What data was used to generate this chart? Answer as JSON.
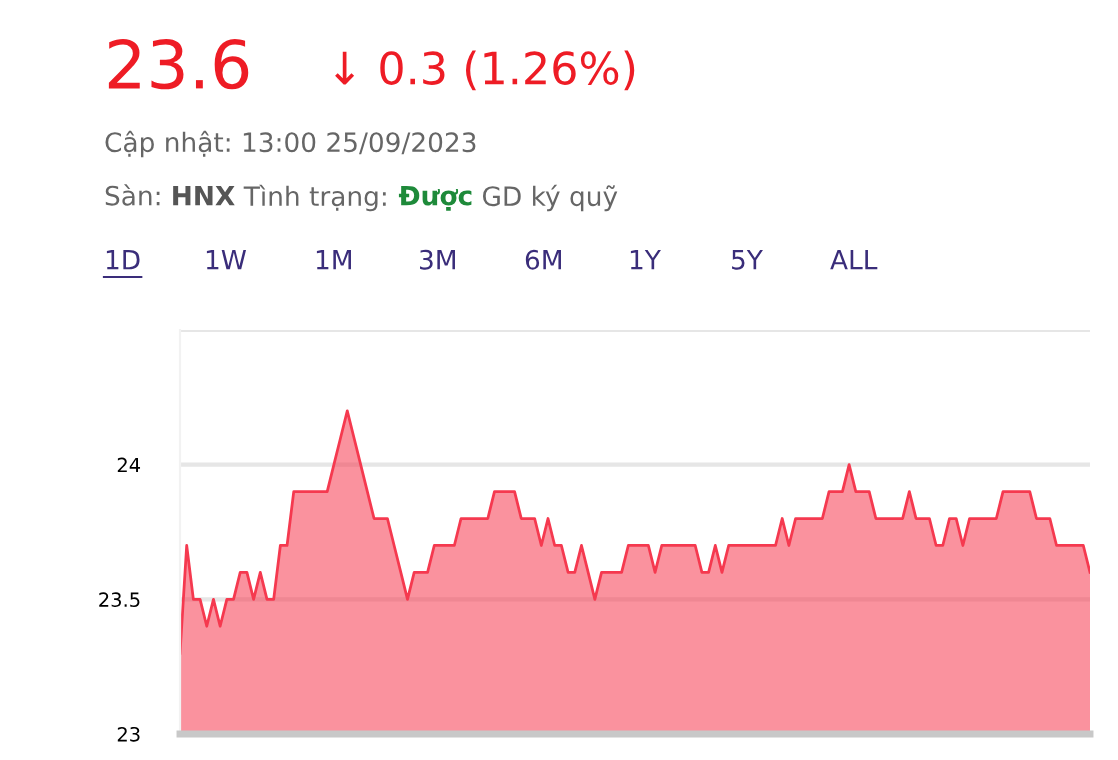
{
  "chart_data": {
    "type": "area",
    "title": "23.6",
    "annotations": [
      "↓ 0.3 (1.26%)",
      "Cập nhật: 13:00 25/09/2023",
      "Sàn:",
      "HNX",
      "Tình trạng:",
      "Được",
      "GD ký quỹ",
      "1D",
      "1W",
      "1M",
      "3M",
      "6M",
      "1Y",
      "5Y",
      "ALL"
    ],
    "categories": [
      null,
      null,
      null,
      null,
      null,
      null,
      null,
      null,
      null,
      null,
      null,
      null,
      null,
      null,
      null,
      null,
      null,
      null,
      null,
      null,
      null,
      null,
      null,
      null,
      null,
      null,
      null,
      null,
      null,
      null,
      null,
      null,
      null,
      null,
      null,
      null,
      null,
      null,
      null,
      null,
      null,
      null,
      null,
      null,
      null,
      null,
      null,
      null,
      null,
      null,
      null,
      null,
      null,
      null,
      null,
      null,
      null,
      null,
      null,
      null,
      null,
      null,
      null,
      null,
      null,
      null,
      null,
      null,
      null,
      null,
      null,
      null,
      null,
      null,
      null,
      null,
      null,
      null,
      null,
      null,
      null,
      null,
      null,
      null,
      null,
      null,
      null,
      null,
      null,
      null,
      null,
      null,
      null,
      null,
      null,
      null,
      null,
      null,
      null,
      null,
      null,
      null,
      null,
      null,
      null,
      null,
      null,
      null,
      null,
      null,
      null,
      null,
      null,
      null,
      null,
      null,
      null,
      null,
      null,
      null,
      null,
      null,
      null,
      null,
      null,
      null,
      null,
      null,
      null,
      null,
      null,
      null,
      null,
      null,
      null,
      null,
      null
    ],
    "series": [
      {
        "color": "#f5394f",
        "values": [
          23.3,
          23.7,
          23.5,
          23.5,
          23.4,
          23.5,
          23.4,
          23.5,
          23.5,
          23.6,
          23.6,
          23.5,
          23.6,
          23.5,
          23.5,
          23.7,
          23.7,
          23.9,
          23.9,
          23.9,
          23.9,
          23.9,
          23.9,
          24.0,
          24.1,
          24.2,
          24.1,
          24.0,
          23.9,
          23.8,
          23.8,
          23.8,
          23.7,
          23.6,
          23.5,
          23.6,
          23.6,
          23.6,
          23.7,
          23.7,
          23.7,
          23.7,
          23.8,
          23.8,
          23.8,
          23.8,
          23.8,
          23.9,
          23.9,
          23.9,
          23.9,
          23.8,
          23.8,
          23.8,
          23.7,
          23.8,
          23.7,
          23.7,
          23.6,
          23.6,
          23.7,
          23.6,
          23.5,
          23.6,
          23.6,
          23.6,
          23.6,
          23.7,
          23.7,
          23.7,
          23.7,
          23.6,
          23.7,
          23.7,
          23.7,
          23.7,
          23.7,
          23.7,
          23.6,
          23.6,
          23.7,
          23.6,
          23.7,
          23.7,
          23.7,
          23.7,
          23.7,
          23.7,
          23.7,
          23.7,
          23.8,
          23.7,
          23.8,
          23.8,
          23.8,
          23.8,
          23.8,
          23.9,
          23.9,
          23.9,
          24.0,
          23.9,
          23.9,
          23.9,
          23.8,
          23.8,
          23.8,
          23.8,
          23.8,
          23.9,
          23.8,
          23.8,
          23.8,
          23.7,
          23.7,
          23.8,
          23.8,
          23.7,
          23.8,
          23.8,
          23.8,
          23.8,
          23.8,
          23.9,
          23.9,
          23.9,
          23.9,
          23.9,
          23.8,
          23.8,
          23.8,
          23.7,
          23.7,
          23.7,
          23.7,
          23.7,
          23.6
        ]
      }
    ],
    "ylim": [
      23,
      24.5
    ],
    "yticks": [
      23,
      23.5,
      24,
      {
        "value": 24.5,
        "label": null
      }
    ],
    "grid": "y",
    "tick_labels": "y"
  }
}
